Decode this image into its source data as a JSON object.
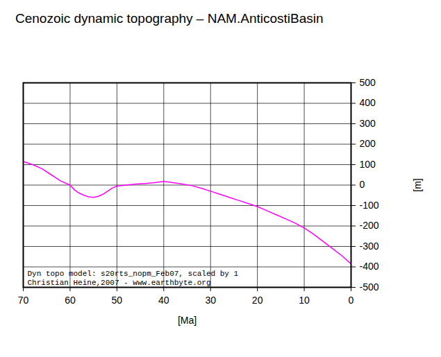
{
  "chart_data": {
    "type": "line",
    "title": "Cenozoic dynamic topography – NAM.AnticostiBasin",
    "x_label": "[Ma]",
    "y_label": "[m]",
    "annotations": [
      "Dyn topo model: s20rts_nopm_Feb07, scaled by 1",
      "Christian Heine,2007 - www.earthbyte.org"
    ],
    "x": [
      70,
      68,
      66,
      64,
      62,
      60,
      59,
      58,
      57,
      56,
      55,
      54,
      53,
      52,
      51,
      50,
      48,
      46,
      44,
      42,
      40,
      38,
      36,
      34,
      32,
      30,
      28,
      26,
      24,
      22,
      20,
      18,
      16,
      14,
      12,
      10,
      8,
      6,
      4,
      2,
      0
    ],
    "series": [
      {
        "name": "NAM.AnticostiBasin",
        "color": "#ff00ff",
        "values": [
          115,
          100,
          80,
          50,
          20,
          0,
          -25,
          -40,
          -50,
          -58,
          -60,
          -55,
          -45,
          -30,
          -15,
          -5,
          0,
          5,
          8,
          12,
          18,
          12,
          5,
          -3,
          -15,
          -30,
          -45,
          -60,
          -75,
          -90,
          -105,
          -125,
          -145,
          -165,
          -185,
          -210,
          -240,
          -275,
          -310,
          -345,
          -385
        ]
      }
    ],
    "xlim": [
      70,
      0
    ],
    "ylim": [
      -500,
      500
    ],
    "xticks": [
      70,
      60,
      50,
      40,
      30,
      20,
      10,
      0
    ],
    "yticks": [
      -500,
      -400,
      -300,
      -200,
      -100,
      0,
      100,
      200,
      300,
      400,
      500
    ],
    "grid": true
  }
}
